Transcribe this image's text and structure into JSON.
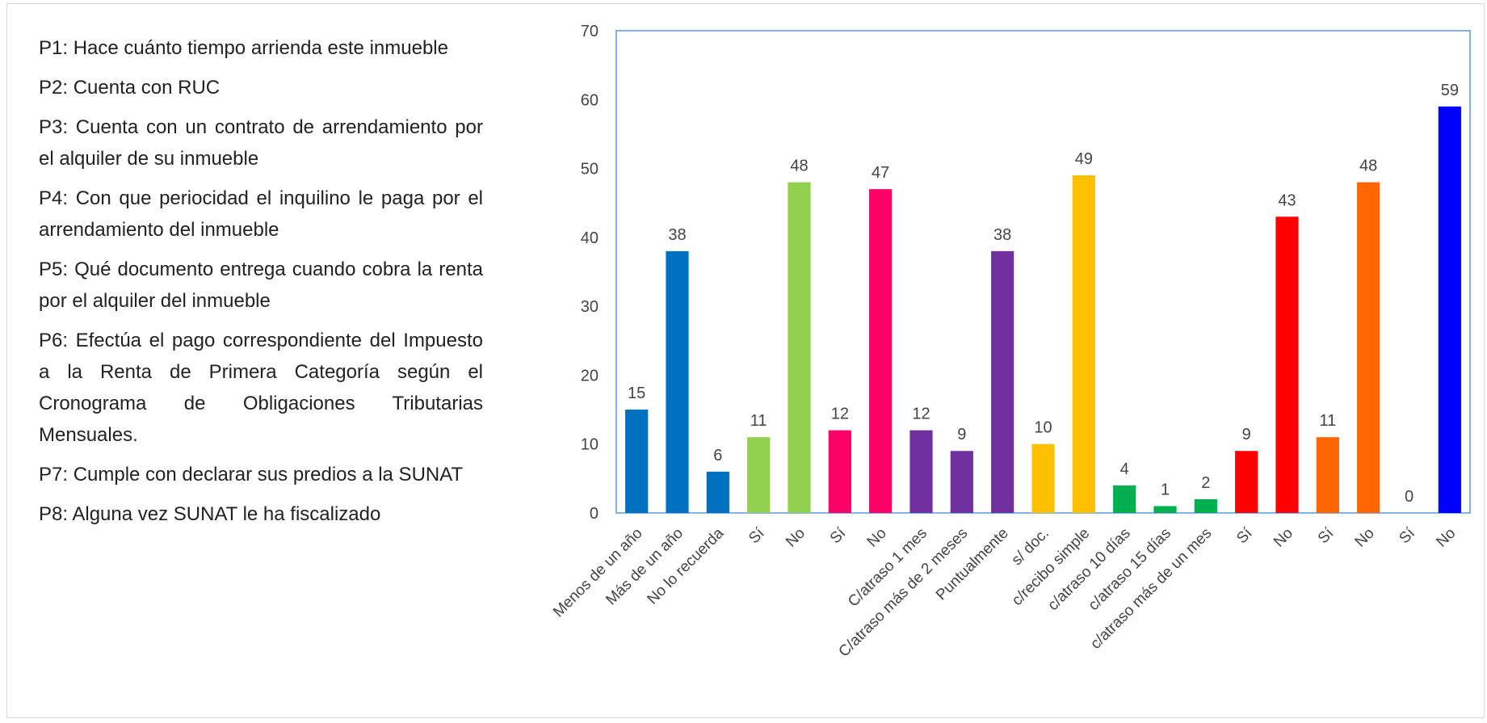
{
  "legend": [
    "P1: Hace cuánto tiempo arrienda este inmueble",
    "P2: Cuenta con RUC",
    "P3: Cuenta con un contrato de arrendamiento por el alquiler de su inmueble",
    "P4: Con que periocidad el inquilino le paga por el arrendamiento del inmueble",
    "P5: Qué documento entrega cuando cobra la renta por el alquiler del inmueble",
    "P6: Efectúa el pago correspondiente del Impuesto a la Renta de Primera Categoría según el Cronograma de Obligaciones Tributarias Mensuales.",
    "P7: Cumple con declarar sus predios a la SUNAT",
    "P8: Alguna vez SUNAT le ha fiscalizado"
  ],
  "chart_data": {
    "type": "bar",
    "title": "",
    "xlabel": "",
    "ylabel": "",
    "ylim": [
      0,
      70
    ],
    "yticks": [
      0,
      10,
      20,
      30,
      40,
      50,
      60,
      70
    ],
    "grid": false,
    "categories": [
      "Menos de un año",
      "Más de un año",
      "No lo recuerda",
      "Sí",
      "No",
      "Sí",
      "No",
      "C/atraso 1 mes",
      "C/atraso más de 2 meses",
      "Puntualmente",
      "s/ doc.",
      "c/recibo simple",
      "c/atraso 10 días",
      "c/atraso 15 días",
      "c/atraso más de un mes",
      "Sí",
      "No",
      "Sí",
      "No",
      "Sí",
      "No"
    ],
    "values": [
      15,
      38,
      6,
      11,
      48,
      12,
      47,
      12,
      9,
      38,
      10,
      49,
      4,
      1,
      2,
      9,
      43,
      11,
      48,
      0,
      59
    ],
    "colors": [
      "#0070C0",
      "#0070C0",
      "#0070C0",
      "#92D050",
      "#92D050",
      "#FF0066",
      "#FF0066",
      "#7030A0",
      "#7030A0",
      "#7030A0",
      "#FFC000",
      "#FFC000",
      "#00B050",
      "#00B050",
      "#00B050",
      "#FF0000",
      "#FF0000",
      "#FF6600",
      "#FF6600",
      "#0000FF",
      "#0000FF"
    ],
    "axis_color": "#5B9BD5"
  }
}
